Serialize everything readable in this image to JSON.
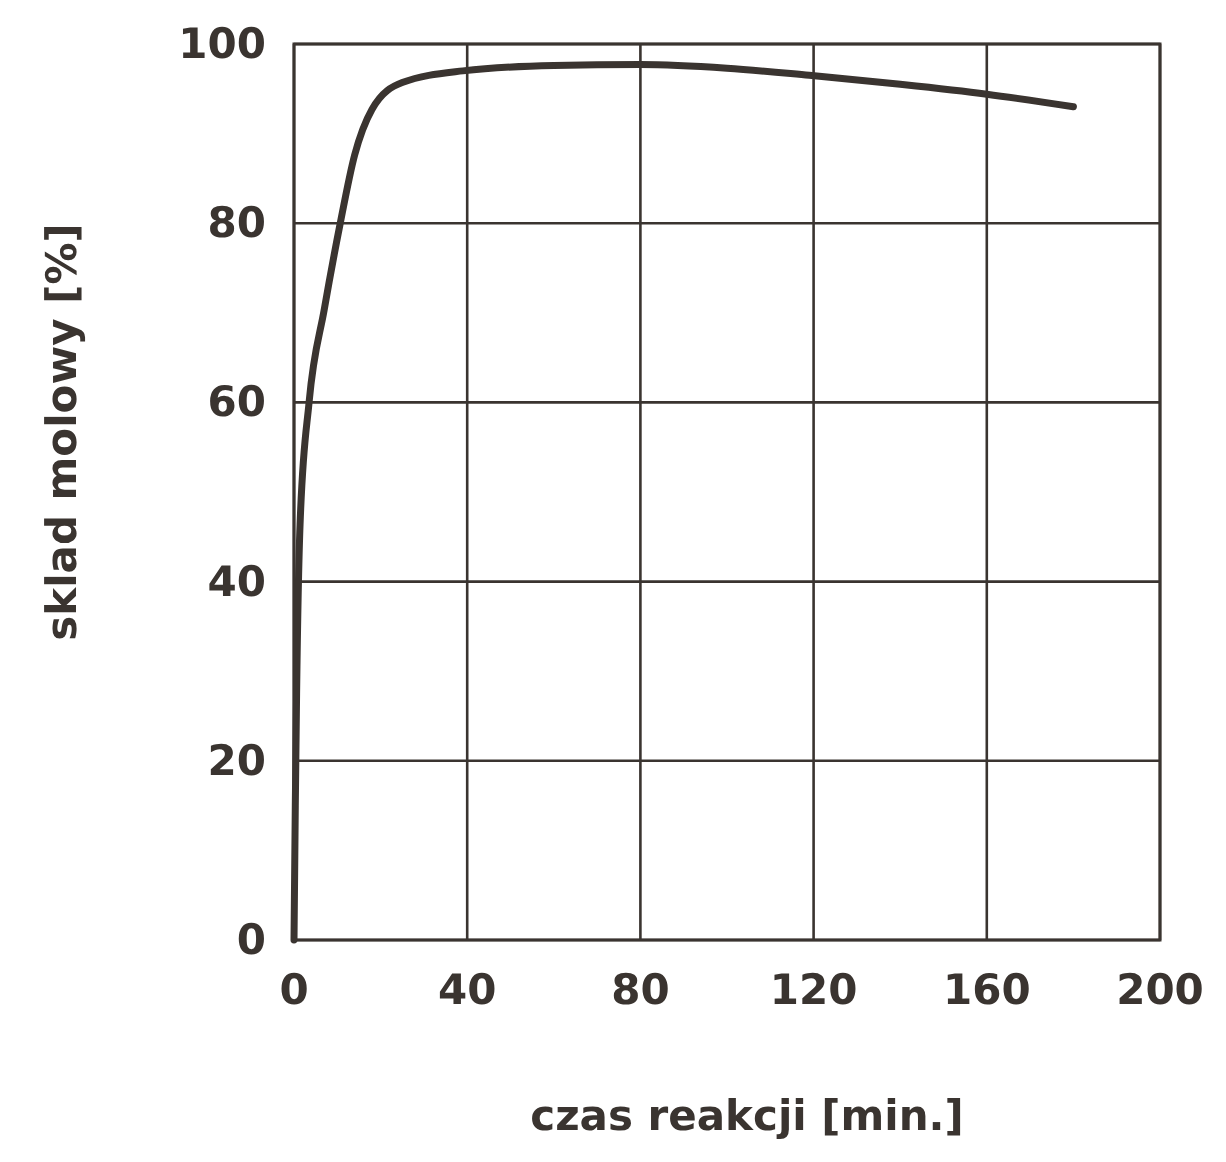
{
  "chart_data": {
    "type": "line",
    "xlabel": "czas reakcji [min.]",
    "ylabel": "sklad molowy [%]",
    "x": [
      0,
      0.3,
      0.6,
      1.4,
      3.5,
      7,
      10.6,
      14,
      18,
      25,
      39,
      60,
      80,
      100,
      119,
      140,
      160,
      180
    ],
    "series": [
      {
        "color": "#3a3430",
        "values": [
          0,
          15,
          27.5,
          46.4,
          60.1,
          70.4,
          79.8,
          87.6,
          92.7,
          95.7,
          97,
          97.6,
          97.7,
          97.3,
          96.5,
          95.5,
          94.4,
          93
        ]
      }
    ],
    "xlim": [
      0,
      200
    ],
    "ylim": [
      0,
      100
    ],
    "xticks": [
      0,
      40,
      80,
      120,
      160,
      200
    ],
    "yticks": [
      0,
      20,
      40,
      60,
      80,
      100
    ],
    "grid": true,
    "marker": "none",
    "line_style": "solid"
  }
}
